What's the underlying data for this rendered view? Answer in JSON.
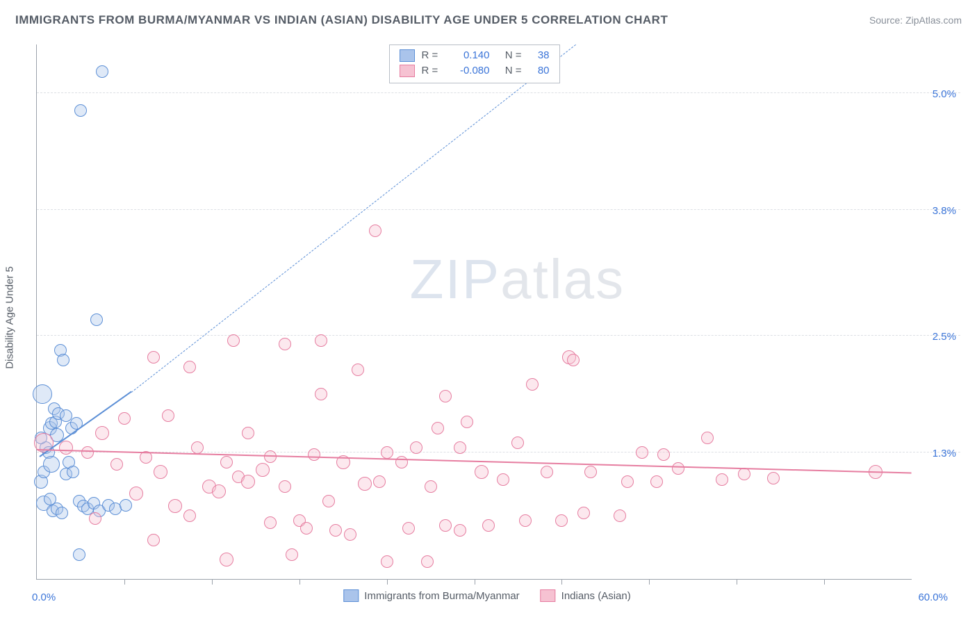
{
  "title": "IMMIGRANTS FROM BURMA/MYANMAR VS INDIAN (ASIAN) DISABILITY AGE UNDER 5 CORRELATION CHART",
  "source": "Source: ZipAtlas.com",
  "y_axis_label": "Disability Age Under 5",
  "watermark": {
    "bold": "ZIP",
    "light": "atlas"
  },
  "chart": {
    "type": "scatter",
    "background_color": "#ffffff",
    "axis_color": "#9aa1aa",
    "grid_color": "#dcdfe4",
    "tick_label_color": "#3a74d8",
    "label_fontsize": 15,
    "title_fontsize": 17,
    "xlim": [
      0,
      60
    ],
    "ylim": [
      0,
      5.5
    ],
    "y_gridlines": [
      {
        "v": 5.0,
        "label": "5.0%"
      },
      {
        "v": 3.8,
        "label": "3.8%"
      },
      {
        "v": 2.5,
        "label": "2.5%"
      },
      {
        "v": 1.3,
        "label": "1.3%"
      }
    ],
    "x_ticks": [
      6,
      12,
      18,
      24,
      30,
      36,
      42,
      48,
      54
    ],
    "x_labels": [
      {
        "v": 0,
        "text": "0.0%"
      },
      {
        "v": 60,
        "text": "60.0%"
      }
    ],
    "marker_radius_base": 9,
    "marker_border_width": 1.3,
    "marker_fill_opacity": 0.28,
    "series": [
      {
        "id": "burma",
        "label": "Immigrants from Burma/Myanmar",
        "color_border": "#5c8fd6",
        "color_fill": "#aac4eb",
        "R": "0.140",
        "N": "38",
        "trend": {
          "solid": {
            "x1": 0.2,
            "y1": 1.25,
            "x2": 6.5,
            "y2": 1.92,
            "width": 2.0,
            "dash": false
          },
          "dashed": {
            "x1": 6.5,
            "y1": 1.92,
            "x2": 37.0,
            "y2": 5.5,
            "width": 1.3,
            "dash": true
          }
        },
        "points": [
          {
            "x": 0.3,
            "y": 1.0,
            "r": 10
          },
          {
            "x": 0.5,
            "y": 1.1,
            "r": 9
          },
          {
            "x": 0.6,
            "y": 1.35,
            "r": 9
          },
          {
            "x": 0.8,
            "y": 1.3,
            "r": 9
          },
          {
            "x": 0.9,
            "y": 1.55,
            "r": 10
          },
          {
            "x": 1.0,
            "y": 1.6,
            "r": 9
          },
          {
            "x": 1.2,
            "y": 1.75,
            "r": 9
          },
          {
            "x": 1.3,
            "y": 1.62,
            "r": 9
          },
          {
            "x": 1.4,
            "y": 1.48,
            "r": 10
          },
          {
            "x": 1.5,
            "y": 1.7,
            "r": 9
          },
          {
            "x": 1.6,
            "y": 2.35,
            "r": 9
          },
          {
            "x": 1.8,
            "y": 2.25,
            "r": 9
          },
          {
            "x": 0.5,
            "y": 0.78,
            "r": 11
          },
          {
            "x": 0.9,
            "y": 0.82,
            "r": 9
          },
          {
            "x": 1.1,
            "y": 0.7,
            "r": 9
          },
          {
            "x": 1.4,
            "y": 0.72,
            "r": 9
          },
          {
            "x": 1.7,
            "y": 0.68,
            "r": 9
          },
          {
            "x": 2.0,
            "y": 1.08,
            "r": 9
          },
          {
            "x": 2.2,
            "y": 1.2,
            "r": 9
          },
          {
            "x": 2.5,
            "y": 1.1,
            "r": 9
          },
          {
            "x": 2.9,
            "y": 0.8,
            "r": 9
          },
          {
            "x": 3.2,
            "y": 0.75,
            "r": 9
          },
          {
            "x": 3.5,
            "y": 0.72,
            "r": 9
          },
          {
            "x": 3.9,
            "y": 0.78,
            "r": 9
          },
          {
            "x": 4.3,
            "y": 0.7,
            "r": 9
          },
          {
            "x": 4.9,
            "y": 0.76,
            "r": 9
          },
          {
            "x": 5.4,
            "y": 0.72,
            "r": 9
          },
          {
            "x": 6.1,
            "y": 0.76,
            "r": 9
          },
          {
            "x": 2.0,
            "y": 1.68,
            "r": 9
          },
          {
            "x": 2.4,
            "y": 1.55,
            "r": 9
          },
          {
            "x": 2.7,
            "y": 1.6,
            "r": 9
          },
          {
            "x": 0.4,
            "y": 1.9,
            "r": 14
          },
          {
            "x": 3.0,
            "y": 4.82,
            "r": 9
          },
          {
            "x": 4.5,
            "y": 5.22,
            "r": 9
          },
          {
            "x": 4.1,
            "y": 2.67,
            "r": 9
          },
          {
            "x": 0.3,
            "y": 1.45,
            "r": 9
          },
          {
            "x": 2.9,
            "y": 0.25,
            "r": 9
          },
          {
            "x": 1.0,
            "y": 1.18,
            "r": 12
          }
        ]
      },
      {
        "id": "indian",
        "label": "Indians (Asian)",
        "color_border": "#e67da0",
        "color_fill": "#f6c2d2",
        "R": "-0.080",
        "N": "80",
        "trend": {
          "solid": {
            "x1": 0.0,
            "y1": 1.32,
            "x2": 60.0,
            "y2": 1.08,
            "width": 2.2,
            "dash": false
          }
        },
        "points": [
          {
            "x": 0.5,
            "y": 1.4,
            "r": 14
          },
          {
            "x": 2.0,
            "y": 1.35,
            "r": 10
          },
          {
            "x": 3.5,
            "y": 1.3,
            "r": 9
          },
          {
            "x": 4.5,
            "y": 1.5,
            "r": 10
          },
          {
            "x": 5.5,
            "y": 1.18,
            "r": 9
          },
          {
            "x": 6.0,
            "y": 1.65,
            "r": 9
          },
          {
            "x": 6.8,
            "y": 0.88,
            "r": 10
          },
          {
            "x": 7.5,
            "y": 1.25,
            "r": 9
          },
          {
            "x": 8.0,
            "y": 2.28,
            "r": 9
          },
          {
            "x": 8.0,
            "y": 0.4,
            "r": 9
          },
          {
            "x": 8.5,
            "y": 1.1,
            "r": 10
          },
          {
            "x": 9.0,
            "y": 1.68,
            "r": 9
          },
          {
            "x": 9.5,
            "y": 0.75,
            "r": 10
          },
          {
            "x": 10.5,
            "y": 2.18,
            "r": 9
          },
          {
            "x": 10.5,
            "y": 0.65,
            "r": 9
          },
          {
            "x": 11.0,
            "y": 1.35,
            "r": 9
          },
          {
            "x": 11.8,
            "y": 0.95,
            "r": 10
          },
          {
            "x": 12.5,
            "y": 0.9,
            "r": 10
          },
          {
            "x": 13.0,
            "y": 1.2,
            "r": 9
          },
          {
            "x": 13.0,
            "y": 0.2,
            "r": 10
          },
          {
            "x": 13.5,
            "y": 2.45,
            "r": 9
          },
          {
            "x": 13.8,
            "y": 1.05,
            "r": 9
          },
          {
            "x": 14.5,
            "y": 1.0,
            "r": 10
          },
          {
            "x": 14.5,
            "y": 1.5,
            "r": 9
          },
          {
            "x": 15.5,
            "y": 1.12,
            "r": 10
          },
          {
            "x": 16.0,
            "y": 0.58,
            "r": 9
          },
          {
            "x": 16.0,
            "y": 1.26,
            "r": 9
          },
          {
            "x": 17.0,
            "y": 0.95,
            "r": 9
          },
          {
            "x": 17.0,
            "y": 2.42,
            "r": 9
          },
          {
            "x": 17.5,
            "y": 0.25,
            "r": 9
          },
          {
            "x": 18.0,
            "y": 0.6,
            "r": 9
          },
          {
            "x": 18.5,
            "y": 0.52,
            "r": 9
          },
          {
            "x": 19.0,
            "y": 1.28,
            "r": 9
          },
          {
            "x": 19.5,
            "y": 2.45,
            "r": 9
          },
          {
            "x": 19.5,
            "y": 1.9,
            "r": 9
          },
          {
            "x": 20.0,
            "y": 0.8,
            "r": 9
          },
          {
            "x": 20.5,
            "y": 0.5,
            "r": 9
          },
          {
            "x": 21.0,
            "y": 1.2,
            "r": 10
          },
          {
            "x": 21.5,
            "y": 0.46,
            "r": 9
          },
          {
            "x": 22.0,
            "y": 2.15,
            "r": 9
          },
          {
            "x": 22.5,
            "y": 0.98,
            "r": 10
          },
          {
            "x": 23.2,
            "y": 3.58,
            "r": 9
          },
          {
            "x": 23.5,
            "y": 1.0,
            "r": 9
          },
          {
            "x": 24.0,
            "y": 0.18,
            "r": 9
          },
          {
            "x": 24.0,
            "y": 1.3,
            "r": 9
          },
          {
            "x": 25.0,
            "y": 1.2,
            "r": 9
          },
          {
            "x": 25.5,
            "y": 0.52,
            "r": 9
          },
          {
            "x": 26.0,
            "y": 1.35,
            "r": 9
          },
          {
            "x": 26.8,
            "y": 0.18,
            "r": 9
          },
          {
            "x": 27.0,
            "y": 0.95,
            "r": 9
          },
          {
            "x": 27.5,
            "y": 1.55,
            "r": 9
          },
          {
            "x": 28.0,
            "y": 1.88,
            "r": 9
          },
          {
            "x": 28.0,
            "y": 0.55,
            "r": 9
          },
          {
            "x": 29.0,
            "y": 0.5,
            "r": 9
          },
          {
            "x": 29.0,
            "y": 1.35,
            "r": 9
          },
          {
            "x": 29.5,
            "y": 1.62,
            "r": 9
          },
          {
            "x": 30.5,
            "y": 1.1,
            "r": 10
          },
          {
            "x": 31.0,
            "y": 0.55,
            "r": 9
          },
          {
            "x": 32.0,
            "y": 1.02,
            "r": 9
          },
          {
            "x": 33.0,
            "y": 1.4,
            "r": 9
          },
          {
            "x": 33.5,
            "y": 0.6,
            "r": 9
          },
          {
            "x": 34.0,
            "y": 2.0,
            "r": 9
          },
          {
            "x": 35.0,
            "y": 1.1,
            "r": 9
          },
          {
            "x": 36.0,
            "y": 0.6,
            "r": 9
          },
          {
            "x": 36.5,
            "y": 2.28,
            "r": 10
          },
          {
            "x": 36.8,
            "y": 2.25,
            "r": 9
          },
          {
            "x": 37.5,
            "y": 0.68,
            "r": 9
          },
          {
            "x": 38.0,
            "y": 1.1,
            "r": 9
          },
          {
            "x": 40.0,
            "y": 0.65,
            "r": 9
          },
          {
            "x": 40.5,
            "y": 1.0,
            "r": 9
          },
          {
            "x": 41.5,
            "y": 1.3,
            "r": 9
          },
          {
            "x": 42.5,
            "y": 1.0,
            "r": 9
          },
          {
            "x": 43.0,
            "y": 1.28,
            "r": 9
          },
          {
            "x": 44.0,
            "y": 1.14,
            "r": 9
          },
          {
            "x": 46.0,
            "y": 1.45,
            "r": 9
          },
          {
            "x": 47.0,
            "y": 1.02,
            "r": 9
          },
          {
            "x": 48.5,
            "y": 1.08,
            "r": 9
          },
          {
            "x": 50.5,
            "y": 1.04,
            "r": 9
          },
          {
            "x": 57.5,
            "y": 1.1,
            "r": 10
          },
          {
            "x": 4.0,
            "y": 0.62,
            "r": 9
          }
        ]
      }
    ]
  }
}
